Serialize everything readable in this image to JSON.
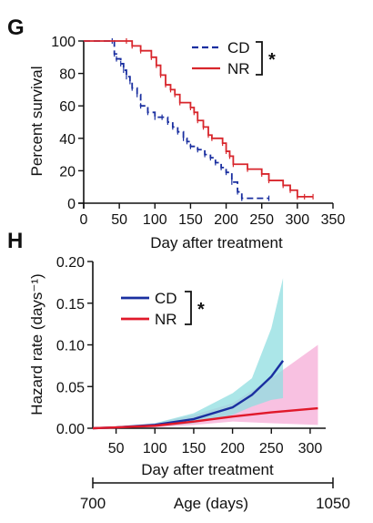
{
  "colors": {
    "cd": "#1a2fa0",
    "nr": "#d8262c",
    "cd_band": "#8fdde0",
    "nr_band": "#f7b6dc",
    "axis": "#111111"
  },
  "chart_data": [
    {
      "panel": "G",
      "type": "line",
      "subtype": "kaplan-meier-step",
      "xlabel": "Day after treatment",
      "ylabel": "Percent survival",
      "xlim": [
        0,
        350
      ],
      "ylim": [
        0,
        100
      ],
      "xticks": [
        "0",
        "50",
        "100",
        "150",
        "200",
        "250",
        "300",
        "350"
      ],
      "yticks": [
        "0",
        "20",
        "40",
        "60",
        "80",
        "100"
      ],
      "grid": false,
      "legend": {
        "placement": "top-right",
        "entries": [
          "CD",
          "NR"
        ]
      },
      "significance": "*",
      "series": [
        {
          "name": "CD",
          "style": "dashed",
          "color": "#1a2fa0",
          "x": [
            0,
            40,
            43,
            46,
            52,
            56,
            60,
            65,
            68,
            75,
            80,
            90,
            100,
            110,
            118,
            125,
            132,
            140,
            145,
            150,
            160,
            170,
            178,
            185,
            193,
            200,
            208,
            216,
            222,
            260
          ],
          "y": [
            100,
            100,
            92,
            89,
            86,
            82,
            78,
            75,
            71,
            67,
            60,
            56,
            53,
            53,
            50,
            47,
            44,
            40,
            38,
            35,
            33,
            30,
            28,
            25,
            22,
            19,
            13,
            7,
            3,
            3
          ]
        },
        {
          "name": "NR",
          "style": "solid",
          "color": "#d8262c",
          "x": [
            0,
            60,
            68,
            80,
            95,
            102,
            108,
            115,
            122,
            128,
            135,
            150,
            155,
            160,
            168,
            175,
            180,
            195,
            200,
            205,
            210,
            230,
            250,
            260,
            280,
            290,
            300,
            310,
            322
          ],
          "y": [
            100,
            100,
            97,
            94,
            90,
            85,
            79,
            73,
            70,
            67,
            62,
            59,
            56,
            51,
            47,
            42,
            40,
            37,
            32,
            29,
            24,
            21,
            18,
            14,
            11,
            8,
            4,
            4,
            4
          ]
        }
      ]
    },
    {
      "panel": "H",
      "type": "line",
      "subtype": "hazard-with-confidence-band",
      "xlabel": "Day after treatment",
      "ylabel": "Hazard rate (days⁻¹)",
      "xlim": [
        20,
        320
      ],
      "ylim": [
        0,
        0.2
      ],
      "xticks": [
        "50",
        "100",
        "150",
        "200",
        "250",
        "300"
      ],
      "yticks": [
        "0.00",
        "0.05",
        "0.10",
        "0.15",
        "0.20"
      ],
      "grid": false,
      "legend": {
        "placement": "top-left",
        "entries": [
          "CD",
          "NR"
        ]
      },
      "significance": "*",
      "series": [
        {
          "name": "CD",
          "color": "#1a2fa0",
          "x": [
            20,
            50,
            100,
            150,
            200,
            225,
            250,
            265
          ],
          "y": [
            0.0,
            0.001,
            0.004,
            0.011,
            0.025,
            0.04,
            0.062,
            0.081
          ],
          "lower": [
            0.0,
            0.0,
            0.002,
            0.006,
            0.016,
            0.026,
            0.034,
            0.036
          ],
          "upper": [
            0.0,
            0.002,
            0.006,
            0.018,
            0.042,
            0.06,
            0.12,
            0.18
          ]
        },
        {
          "name": "NR",
          "color": "#e0192a",
          "x": [
            20,
            50,
            100,
            150,
            200,
            250,
            310
          ],
          "y": [
            0.0,
            0.001,
            0.003,
            0.008,
            0.014,
            0.019,
            0.024
          ],
          "lower": [
            0.0,
            0.0,
            0.001,
            0.004,
            0.008,
            0.006,
            0.004
          ],
          "upper": [
            0.0,
            0.002,
            0.006,
            0.016,
            0.03,
            0.06,
            0.1
          ]
        }
      ],
      "secondary_axis": {
        "label": "Age (days)",
        "tick_labels": [
          "700",
          "1050"
        ]
      }
    }
  ]
}
